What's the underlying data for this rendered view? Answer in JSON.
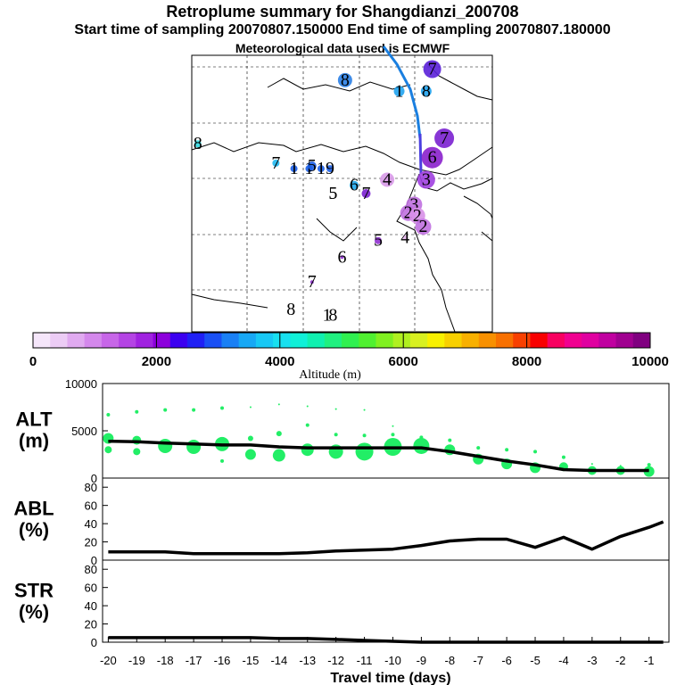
{
  "header": {
    "title": "Retroplume summary for Shangdianzi_200708",
    "sampling_line": "Start time of sampling 20070807.150000     End time of sampling 20070807.180000",
    "met_line": "Meteorological data used is ECMWF"
  },
  "colors": {
    "trajectory_main": "#1a7fe0",
    "trajectory_recent": "#4b3fe0",
    "profile_dots": "#22ee66",
    "line": "#000000"
  },
  "chart_data": [
    {
      "type": "map",
      "name": "retroplume-map",
      "description_labels": [
        "8",
        "1",
        "8",
        "7",
        "1",
        "1",
        "5",
        "1",
        "9",
        "6",
        "5",
        "7",
        "4",
        "3",
        "4",
        "5",
        "4",
        "2",
        "2",
        "2",
        "1",
        "3",
        "6",
        "6",
        "7",
        "7",
        "7",
        "8",
        "1",
        "8"
      ],
      "day_labels": [
        {
          "text": "8",
          "lon_rel": 0.51,
          "lat_rel": 0.91,
          "color": "#2a80e6",
          "size": 8
        },
        {
          "text": "1",
          "lon_rel": 0.69,
          "lat_rel": 0.87,
          "color": "#1fa3f0",
          "size": 6
        },
        {
          "text": "8",
          "lon_rel": 0.78,
          "lat_rel": 0.87,
          "color": "#1fa3f0",
          "size": 6
        },
        {
          "text": "7",
          "lon_rel": 0.8,
          "lat_rel": 0.95,
          "color": "#5a20d8",
          "size": 10
        },
        {
          "text": "7",
          "lon_rel": 0.84,
          "lat_rel": 0.7,
          "color": "#7a20d0",
          "size": 11
        },
        {
          "text": "6",
          "lon_rel": 0.8,
          "lat_rel": 0.63,
          "color": "#8a20cc",
          "size": 12
        },
        {
          "text": "8",
          "lon_rel": 0.02,
          "lat_rel": 0.68,
          "color": "#30d8e0",
          "size": 4
        },
        {
          "text": "7",
          "lon_rel": 0.28,
          "lat_rel": 0.61,
          "color": "#20b8f0",
          "size": 4
        },
        {
          "text": "1",
          "lon_rel": 0.34,
          "lat_rel": 0.59,
          "color": "#1a5ee8",
          "size": 4
        },
        {
          "text": "1",
          "lon_rel": 0.39,
          "lat_rel": 0.59,
          "color": "#1a5ee8",
          "size": 4
        },
        {
          "text": "5",
          "lon_rel": 0.4,
          "lat_rel": 0.6,
          "color": "#1a5ee8",
          "size": 5
        },
        {
          "text": "1",
          "lon_rel": 0.43,
          "lat_rel": 0.59,
          "color": "#1a5ee8",
          "size": 4
        },
        {
          "text": "9",
          "lon_rel": 0.46,
          "lat_rel": 0.59,
          "color": "#1a5ee8",
          "size": 4
        },
        {
          "text": "6",
          "lon_rel": 0.54,
          "lat_rel": 0.53,
          "color": "#20a8f0",
          "size": 5
        },
        {
          "text": "5",
          "lon_rel": 0.47,
          "lat_rel": 0.5,
          "color": "#9030d0",
          "size": 0
        },
        {
          "text": "7",
          "lon_rel": 0.58,
          "lat_rel": 0.5,
          "color": "#7a20d0",
          "size": 5
        },
        {
          "text": "4",
          "lon_rel": 0.65,
          "lat_rel": 0.55,
          "color": "#d89ae8",
          "size": 8
        },
        {
          "text": "3",
          "lon_rel": 0.78,
          "lat_rel": 0.55,
          "color": "#a040e0",
          "size": 10
        },
        {
          "text": "3",
          "lon_rel": 0.74,
          "lat_rel": 0.46,
          "color": "#c070e0",
          "size": 9
        },
        {
          "text": "2",
          "lon_rel": 0.72,
          "lat_rel": 0.43,
          "color": "#c070e0",
          "size": 9
        },
        {
          "text": "2",
          "lon_rel": 0.75,
          "lat_rel": 0.42,
          "color": "#d890e8",
          "size": 9
        },
        {
          "text": "2",
          "lon_rel": 0.77,
          "lat_rel": 0.38,
          "color": "#c070e0",
          "size": 9
        },
        {
          "text": "4",
          "lon_rel": 0.71,
          "lat_rel": 0.34,
          "color": "#e8b8f0",
          "size": 3
        },
        {
          "text": "5",
          "lon_rel": 0.62,
          "lat_rel": 0.33,
          "color": "#9030d0",
          "size": 4
        },
        {
          "text": "5",
          "lon_rel": 0.47,
          "lat_rel": 0.5,
          "color": "#000000",
          "size": 0
        },
        {
          "text": "6",
          "lon_rel": 0.5,
          "lat_rel": 0.27,
          "color": "#9030d0",
          "size": 2
        },
        {
          "text": "7",
          "lon_rel": 0.4,
          "lat_rel": 0.18,
          "color": "#9030d0",
          "size": 2
        },
        {
          "text": "8",
          "lon_rel": 0.33,
          "lat_rel": 0.08,
          "color": "#000000",
          "size": 0
        },
        {
          "text": "1",
          "lon_rel": 0.45,
          "lat_rel": 0.06,
          "color": "#000000",
          "size": 0
        },
        {
          "text": "8",
          "lon_rel": 0.47,
          "lat_rel": 0.06,
          "color": "#000000",
          "size": 0
        }
      ]
    },
    {
      "type": "colorbar",
      "name": "altitude-colorbar",
      "xlabel": "Altitude (m)",
      "range": [
        0,
        10000
      ],
      "tick_labels": [
        "0",
        "2000",
        "4000",
        "6000",
        "8000",
        "10000"
      ],
      "colors": [
        "#f5e6fa",
        "#ecccf5",
        "#e0aaf0",
        "#d488ec",
        "#c766e8",
        "#b444e4",
        "#a022e0",
        "#8c00dc",
        "#3c00f0",
        "#2020f5",
        "#1a50f5",
        "#1a80f5",
        "#18a8f5",
        "#18c8f5",
        "#18e0f0",
        "#10f0d8",
        "#10f0b0",
        "#20f080",
        "#30f050",
        "#50f030",
        "#80f020",
        "#b0f020",
        "#d8f020",
        "#f8f000",
        "#f8d000",
        "#f8b000",
        "#f89000",
        "#f87000",
        "#f84000",
        "#f80000",
        "#f80060",
        "#f00090",
        "#e000a0",
        "#c000a0",
        "#a00090",
        "#800080"
      ]
    },
    {
      "type": "scatter",
      "name": "alt-panel",
      "ylabel_line1": "ALT",
      "ylabel_line2": "(m)",
      "ylim": [
        0,
        10000
      ],
      "y_tick_labels": [
        "0",
        "5000",
        "10000"
      ],
      "xlim": [
        -20,
        -0.5
      ],
      "x": [
        -20,
        -19,
        -18,
        -17,
        -16,
        -15,
        -14,
        -13,
        -12,
        -11,
        -10,
        -9,
        -8,
        -7,
        -6,
        -5,
        -4,
        -3,
        -2,
        -1
      ],
      "mean_altitude": [
        3900,
        3850,
        3700,
        3600,
        3500,
        3500,
        3300,
        3200,
        3200,
        3200,
        3200,
        3200,
        2800,
        2300,
        1800,
        1400,
        900,
        800,
        800,
        800
      ],
      "dots": [
        {
          "x": -20,
          "y": 4200,
          "r": 6
        },
        {
          "x": -20,
          "y": 3000,
          "r": 4
        },
        {
          "x": -20,
          "y": 6700,
          "r": 2
        },
        {
          "x": -19,
          "y": 4000,
          "r": 5
        },
        {
          "x": -19,
          "y": 2800,
          "r": 4
        },
        {
          "x": -19,
          "y": 7000,
          "r": 2
        },
        {
          "x": -18,
          "y": 3400,
          "r": 8
        },
        {
          "x": -18,
          "y": 7200,
          "r": 2
        },
        {
          "x": -17,
          "y": 3300,
          "r": 8
        },
        {
          "x": -17,
          "y": 7200,
          "r": 2
        },
        {
          "x": -16,
          "y": 3600,
          "r": 8
        },
        {
          "x": -16,
          "y": 1800,
          "r": 2
        },
        {
          "x": -16,
          "y": 7400,
          "r": 2
        },
        {
          "x": -15,
          "y": 4200,
          "r": 3
        },
        {
          "x": -15,
          "y": 2500,
          "r": 6
        },
        {
          "x": -15,
          "y": 7500,
          "r": 1
        },
        {
          "x": -14,
          "y": 4700,
          "r": 3
        },
        {
          "x": -14,
          "y": 2400,
          "r": 7
        },
        {
          "x": -14,
          "y": 7800,
          "r": 1
        },
        {
          "x": -13,
          "y": 5600,
          "r": 2
        },
        {
          "x": -13,
          "y": 3000,
          "r": 7
        },
        {
          "x": -13,
          "y": 7600,
          "r": 1
        },
        {
          "x": -12,
          "y": 4600,
          "r": 2
        },
        {
          "x": -12,
          "y": 2800,
          "r": 8
        },
        {
          "x": -12,
          "y": 7300,
          "r": 1
        },
        {
          "x": -11,
          "y": 4500,
          "r": 2
        },
        {
          "x": -11,
          "y": 2800,
          "r": 10
        },
        {
          "x": -11,
          "y": 7200,
          "r": 1
        },
        {
          "x": -10,
          "y": 4600,
          "r": 2
        },
        {
          "x": -10,
          "y": 3300,
          "r": 10
        },
        {
          "x": -10,
          "y": 5500,
          "r": 1
        },
        {
          "x": -9,
          "y": 3400,
          "r": 9
        },
        {
          "x": -9,
          "y": 4300,
          "r": 2
        },
        {
          "x": -8,
          "y": 3000,
          "r": 6
        },
        {
          "x": -8,
          "y": 4000,
          "r": 2
        },
        {
          "x": -7,
          "y": 2000,
          "r": 6
        },
        {
          "x": -7,
          "y": 3200,
          "r": 2
        },
        {
          "x": -6,
          "y": 1500,
          "r": 6
        },
        {
          "x": -6,
          "y": 3000,
          "r": 2
        },
        {
          "x": -5,
          "y": 1100,
          "r": 6
        },
        {
          "x": -5,
          "y": 2800,
          "r": 2
        },
        {
          "x": -4,
          "y": 1200,
          "r": 5
        },
        {
          "x": -4,
          "y": 2200,
          "r": 2
        },
        {
          "x": -3,
          "y": 800,
          "r": 5
        },
        {
          "x": -3,
          "y": 1500,
          "r": 1
        },
        {
          "x": -2,
          "y": 800,
          "r": 5
        },
        {
          "x": -2,
          "y": 1300,
          "r": 1
        },
        {
          "x": -1,
          "y": 700,
          "r": 6
        },
        {
          "x": -1,
          "y": 1400,
          "r": 2
        }
      ]
    },
    {
      "type": "line",
      "name": "abl-panel",
      "ylabel_line1": "ABL",
      "ylabel_line2": "(%)",
      "ylim": [
        0,
        90
      ],
      "y_tick_labels": [
        "0",
        "20",
        "40",
        "60",
        "80"
      ],
      "x": [
        -20,
        -19,
        -18,
        -17,
        -16,
        -15,
        -14,
        -13,
        -12,
        -11,
        -10,
        -9,
        -8,
        -7,
        -6,
        -5,
        -4,
        -3,
        -2,
        -1,
        -0.5
      ],
      "values": [
        9,
        9,
        9,
        7,
        7,
        7,
        7,
        8,
        10,
        11,
        12,
        16,
        21,
        23,
        23,
        14,
        25,
        12,
        26,
        36,
        42
      ]
    },
    {
      "type": "line",
      "name": "str-panel",
      "ylabel_line1": "STR",
      "ylabel_line2": "(%)",
      "ylim": [
        0,
        90
      ],
      "y_tick_labels": [
        "0",
        "20",
        "40",
        "60",
        "80"
      ],
      "x": [
        -20,
        -19,
        -18,
        -17,
        -16,
        -15,
        -14,
        -13,
        -12,
        -11,
        -10,
        -9,
        -8,
        -7,
        -6,
        -5,
        -4,
        -3,
        -2,
        -1,
        -0.5
      ],
      "values": [
        5,
        5,
        5,
        5,
        5,
        5,
        4,
        4,
        3,
        2,
        1,
        0,
        0,
        0,
        0,
        0,
        0,
        0,
        0,
        0,
        0
      ],
      "xlabel": "Travel time (days)",
      "x_tick_labels": [
        "-20",
        "-19",
        "-18",
        "-17",
        "-16",
        "-15",
        "-14",
        "-13",
        "-12",
        "-11",
        "-10",
        "-9",
        "-8",
        "-7",
        "-6",
        "-5",
        "-4",
        "-3",
        "-2",
        "-1"
      ]
    }
  ]
}
